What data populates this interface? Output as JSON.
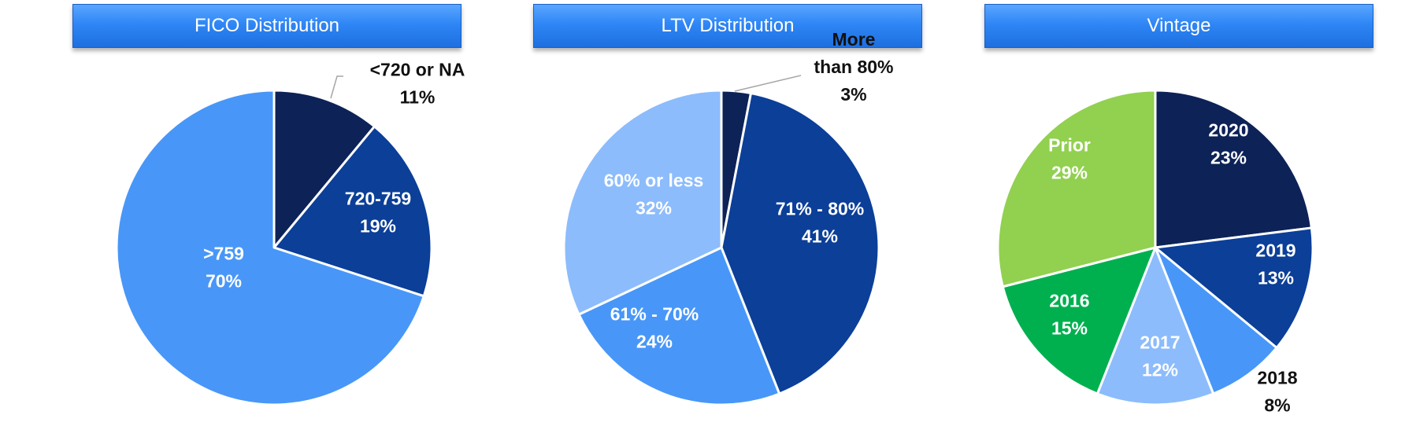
{
  "chart_data": [
    {
      "type": "pie",
      "title": "FICO Distribution",
      "slices": [
        {
          "label": "<720 or NA",
          "value": 11,
          "value_label": "11%",
          "color": "#0d2257",
          "label_color": "#111111",
          "callout": true
        },
        {
          "label": "720-759",
          "value": 19,
          "value_label": "19%",
          "color": "#0b3f98",
          "label_color": "#ffffff"
        },
        {
          "label": ">759",
          "value": 70,
          "value_label": "70%",
          "color": "#4897f8",
          "label_color": "#ffffff"
        }
      ]
    },
    {
      "type": "pie",
      "title": "LTV Distribution",
      "slices": [
        {
          "label": "More than 80%",
          "label_lines": [
            "More",
            "than 80%"
          ],
          "value": 3,
          "value_label": "3%",
          "color": "#0d2257",
          "label_color": "#111111",
          "callout": true
        },
        {
          "label": "71% - 80%",
          "value": 41,
          "value_label": "41%",
          "color": "#0b3f98",
          "label_color": "#ffffff"
        },
        {
          "label": "61% - 70%",
          "value": 24,
          "value_label": "24%",
          "color": "#4897f8",
          "label_color": "#ffffff"
        },
        {
          "label": "60% or less",
          "value": 32,
          "value_label": "32%",
          "color": "#8cbcfc",
          "label_color": "#ffffff"
        }
      ]
    },
    {
      "type": "pie",
      "title": "Vintage",
      "slices": [
        {
          "label": "2020",
          "value": 23,
          "value_label": "23%",
          "color": "#0d2257",
          "label_color": "#ffffff"
        },
        {
          "label": "2019",
          "value": 13,
          "value_label": "13%",
          "color": "#0b3f98",
          "label_color": "#ffffff"
        },
        {
          "label": "2018",
          "value": 8,
          "value_label": "8%",
          "color": "#4897f8",
          "label_color": "#111111",
          "outside": true
        },
        {
          "label": "2017",
          "value": 12,
          "value_label": "12%",
          "color": "#8cbcfc",
          "label_color": "#ffffff"
        },
        {
          "label": "2016",
          "value": 15,
          "value_label": "15%",
          "color": "#00b04f",
          "label_color": "#ffffff"
        },
        {
          "label": "Prior",
          "value": 29,
          "value_label": "29%",
          "color": "#92d050",
          "label_color": "#ffffff"
        }
      ]
    }
  ]
}
